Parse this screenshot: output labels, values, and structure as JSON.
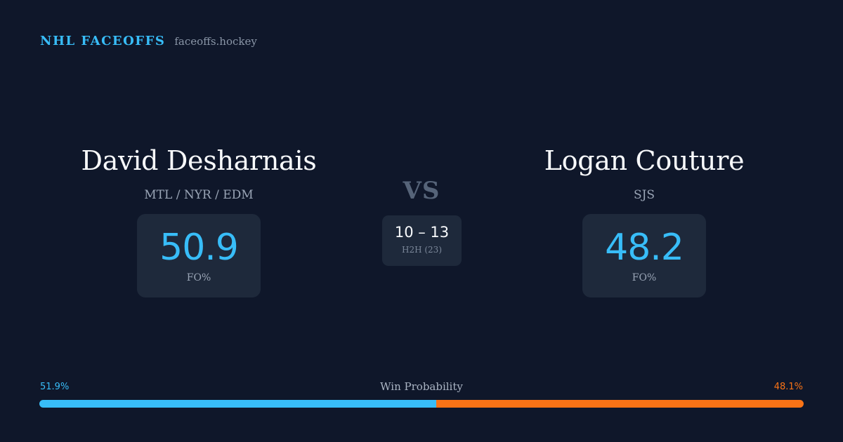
{
  "brand": {
    "title": "NHL FACEOFFS",
    "site": "faceoffs.hockey"
  },
  "player_left": {
    "name": "David Desharnais",
    "teams": "MTL / NYR / EDM",
    "fo_value": "50.9",
    "fo_label": "FO%"
  },
  "player_right": {
    "name": "Logan Couture",
    "teams": "SJS",
    "fo_value": "48.2",
    "fo_label": "FO%"
  },
  "vs_label": "VS",
  "h2h": {
    "score": "10 – 13",
    "label": "H2H (23)"
  },
  "win_probability": {
    "title": "Win Probability",
    "left_label": "51.9%",
    "right_label": "48.1%",
    "left_value": 51.9,
    "right_value": 48.1
  },
  "colors": {
    "background": "#0f172a",
    "card": "#1e293b",
    "accent_blue": "#38bdf8",
    "accent_orange": "#f97316"
  }
}
